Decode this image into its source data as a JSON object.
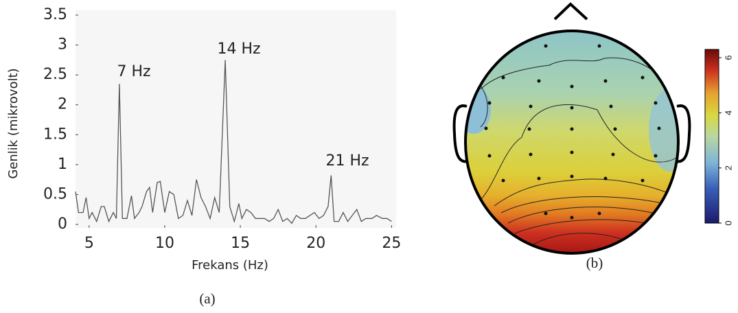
{
  "chart_data": [
    {
      "type": "line",
      "caption": "(a)",
      "xlabel": "Frekans (Hz)",
      "ylabel": "Genlik (mikrovolt)",
      "annotations": [
        "7 Hz",
        "14 Hz",
        "21 Hz"
      ],
      "x": [
        4.1,
        4.3,
        4.6,
        4.8,
        5.0,
        5.2,
        5.5,
        5.8,
        6.0,
        6.3,
        6.6,
        6.8,
        7.0,
        7.2,
        7.5,
        7.8,
        8.0,
        8.3,
        8.5,
        8.8,
        9.0,
        9.2,
        9.5,
        9.7,
        10.0,
        10.3,
        10.6,
        10.9,
        11.2,
        11.5,
        11.8,
        12.1,
        12.4,
        12.7,
        13.0,
        13.3,
        13.6,
        14.0,
        14.3,
        14.6,
        14.9,
        15.1,
        15.4,
        15.7,
        16.0,
        16.3,
        16.6,
        16.9,
        17.2,
        17.5,
        17.8,
        18.1,
        18.4,
        18.7,
        19.0,
        19.3,
        19.6,
        19.9,
        20.2,
        20.5,
        20.8,
        21.0,
        21.2,
        21.5,
        21.8,
        22.1,
        22.4,
        22.7,
        23.0,
        23.3,
        23.7,
        24.0,
        24.4,
        24.7,
        25.0
      ],
      "values": [
        0.55,
        0.2,
        0.2,
        0.45,
        0.1,
        0.2,
        0.05,
        0.3,
        0.3,
        0.05,
        0.2,
        0.1,
        2.35,
        0.1,
        0.1,
        0.48,
        0.1,
        0.2,
        0.3,
        0.55,
        0.62,
        0.2,
        0.7,
        0.72,
        0.2,
        0.55,
        0.5,
        0.1,
        0.15,
        0.4,
        0.15,
        0.75,
        0.45,
        0.3,
        0.1,
        0.45,
        0.2,
        2.75,
        0.3,
        0.05,
        0.35,
        0.1,
        0.25,
        0.2,
        0.1,
        0.1,
        0.1,
        0.05,
        0.1,
        0.25,
        0.05,
        0.1,
        0.02,
        0.15,
        0.1,
        0.1,
        0.15,
        0.2,
        0.1,
        0.15,
        0.3,
        0.82,
        0.05,
        0.05,
        0.2,
        0.05,
        0.15,
        0.25,
        0.05,
        0.1,
        0.1,
        0.15,
        0.1,
        0.1,
        0.05
      ],
      "color": "#555555",
      "xlim": [
        4.1,
        25.3
      ],
      "xticks": [
        5,
        10,
        15,
        20,
        25
      ],
      "ylim": [
        0,
        3.5
      ],
      "yticks": [
        0,
        0.5,
        1,
        1.5,
        2,
        2.5,
        3,
        3.5
      ]
    },
    {
      "type": "topomap",
      "caption": "(b)",
      "clim": [
        0,
        6.3
      ],
      "colorbar_ticks": [
        0,
        2,
        4,
        6
      ]
    }
  ]
}
